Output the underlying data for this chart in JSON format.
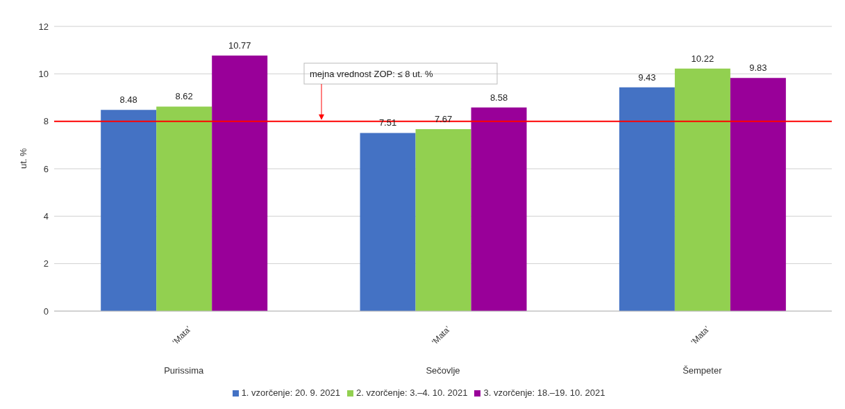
{
  "chart_data": {
    "type": "bar",
    "ylabel": "ut. %",
    "categories": [
      "‘Mata’",
      "‘Mata’",
      "‘Mata’"
    ],
    "annotations": [
      "Purissima",
      "Sečovlje",
      "Šempeter"
    ],
    "series": [
      {
        "name": "1. vzorčenje: 20. 9. 2021",
        "color": "#4472c4",
        "values": [
          8.48,
          7.51,
          9.43
        ]
      },
      {
        "name": "2. vzorčenje: 3.–4. 10. 2021",
        "color": "#92d050",
        "values": [
          8.62,
          7.67,
          10.22
        ]
      },
      {
        "name": "3. vzorčenje: 18.–19. 10. 2021",
        "color": "#990099",
        "values": [
          10.77,
          8.58,
          9.83
        ]
      }
    ],
    "ylim": [
      0,
      12
    ],
    "yticks": [
      0,
      2,
      4,
      6,
      8,
      10,
      12
    ],
    "grid": "y",
    "legend": "bottom",
    "data_labels": true,
    "ref_lines": [
      {
        "axis": "y",
        "value": 8,
        "label": "mejna vrednost ZOP: ≤ 8 ut. %",
        "color": "#ff0000"
      }
    ]
  }
}
